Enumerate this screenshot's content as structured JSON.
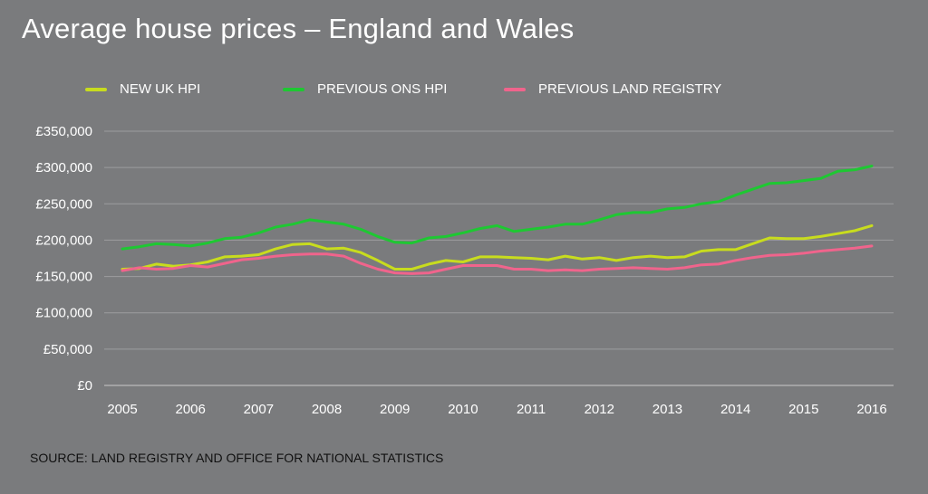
{
  "chart_data": {
    "type": "line",
    "title": "Average house prices – England and Wales",
    "xlabel": "",
    "ylabel": "",
    "xlim": [
      2005,
      2016
    ],
    "ylim": [
      0,
      350000
    ],
    "x_ticks": [
      "2005",
      "2006",
      "2007",
      "2008",
      "2009",
      "2010",
      "2011",
      "2012",
      "2013",
      "2014",
      "2015",
      "2016"
    ],
    "y_ticks": [
      "£0",
      "£50,000",
      "£100,000",
      "£150,000",
      "£200,000",
      "£250,000",
      "£300,000",
      "£350,000"
    ],
    "grid": true,
    "legend_position": "top",
    "source": "SOURCE: LAND REGISTRY AND OFFICE FOR NATIONAL STATISTICS",
    "series": [
      {
        "name": "NEW UK HPI",
        "color": "#c8dc1e",
        "x": [
          2005,
          2005.25,
          2005.5,
          2005.75,
          2006,
          2006.25,
          2006.5,
          2006.75,
          2007,
          2007.25,
          2007.5,
          2007.75,
          2008,
          2008.25,
          2008.5,
          2008.75,
          2009,
          2009.25,
          2009.5,
          2009.75,
          2010,
          2010.25,
          2010.5,
          2010.75,
          2011,
          2011.25,
          2011.5,
          2011.75,
          2012,
          2012.25,
          2012.5,
          2012.75,
          2013,
          2013.25,
          2013.5,
          2013.75,
          2014,
          2014.25,
          2014.5,
          2014.75,
          2015,
          2015.25,
          2015.5,
          2015.75,
          2016
        ],
        "y": [
          160000,
          161000,
          167000,
          164000,
          166000,
          170000,
          177000,
          178000,
          180000,
          188000,
          194000,
          195000,
          188000,
          189000,
          183000,
          172000,
          160000,
          160000,
          167000,
          172000,
          170000,
          177000,
          177000,
          176000,
          175000,
          173000,
          178000,
          174000,
          176000,
          172000,
          176000,
          178000,
          176000,
          177000,
          185000,
          187000,
          187000,
          195000,
          203000,
          202000,
          202000,
          205000,
          209000,
          213000,
          220000
        ]
      },
      {
        "name": "PREVIOUS ONS HPI",
        "color": "#1ec832",
        "x": [
          2005,
          2005.25,
          2005.5,
          2005.75,
          2006,
          2006.25,
          2006.5,
          2006.75,
          2007,
          2007.25,
          2007.5,
          2007.75,
          2008,
          2008.25,
          2008.5,
          2008.75,
          2009,
          2009.25,
          2009.5,
          2009.75,
          2010,
          2010.25,
          2010.5,
          2010.75,
          2011,
          2011.25,
          2011.5,
          2011.75,
          2012,
          2012.25,
          2012.5,
          2012.75,
          2013,
          2013.25,
          2013.5,
          2013.75,
          2014,
          2014.25,
          2014.5,
          2014.75,
          2015,
          2015.25,
          2015.5,
          2015.75,
          2016
        ],
        "y": [
          188000,
          191000,
          195000,
          194000,
          192000,
          196000,
          202000,
          204000,
          210000,
          218000,
          222000,
          228000,
          225000,
          222000,
          215000,
          205000,
          197000,
          196000,
          203000,
          205000,
          210000,
          216000,
          220000,
          212000,
          215000,
          218000,
          222000,
          222000,
          228000,
          235000,
          238000,
          238000,
          243000,
          245000,
          250000,
          253000,
          262000,
          270000,
          278000,
          279000,
          282000,
          285000,
          295000,
          297000,
          302000
        ]
      },
      {
        "name": "PREVIOUS LAND REGISTRY",
        "color": "#f0648c",
        "x": [
          2005,
          2005.25,
          2005.5,
          2005.75,
          2006,
          2006.25,
          2006.5,
          2006.75,
          2007,
          2007.25,
          2007.5,
          2007.75,
          2008,
          2008.25,
          2008.5,
          2008.75,
          2009,
          2009.25,
          2009.5,
          2009.75,
          2010,
          2010.25,
          2010.5,
          2010.75,
          2011,
          2011.25,
          2011.5,
          2011.75,
          2012,
          2012.25,
          2012.5,
          2012.75,
          2013,
          2013.25,
          2013.5,
          2013.75,
          2014,
          2014.25,
          2014.5,
          2014.75,
          2015,
          2015.25,
          2015.5,
          2015.75,
          2016
        ],
        "y": [
          158000,
          162000,
          160000,
          161000,
          165000,
          163000,
          168000,
          173000,
          175000,
          178000,
          180000,
          181000,
          181000,
          178000,
          168000,
          160000,
          155000,
          154000,
          155000,
          160000,
          165000,
          165000,
          165000,
          160000,
          160000,
          158000,
          159000,
          158000,
          160000,
          161000,
          162000,
          161000,
          160000,
          162000,
          166000,
          167000,
          172000,
          176000,
          179000,
          180000,
          182000,
          185000,
          187000,
          189000,
          192000
        ]
      }
    ]
  }
}
